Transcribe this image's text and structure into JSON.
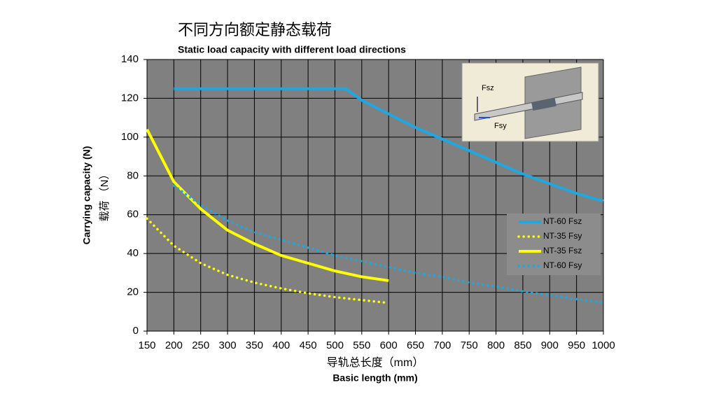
{
  "chart_data": {
    "type": "line",
    "title": "不同方向额定静态载荷",
    "subtitle": "Static load capacity with different load directions",
    "x_label": "导轨总长度（mm）",
    "x_label_en": "Basic length (mm)",
    "y_label": "Carrying capacity (N)",
    "y_label_cn": "载荷 （N）",
    "xlim": [
      150,
      1000
    ],
    "xticks": [
      150,
      200,
      250,
      300,
      350,
      400,
      450,
      500,
      550,
      600,
      650,
      700,
      750,
      800,
      850,
      900,
      950,
      1000
    ],
    "ylim": [
      0,
      140
    ],
    "yticks": [
      0,
      20,
      40,
      60,
      80,
      100,
      120,
      140
    ],
    "grid": true,
    "legend": "right",
    "series": [
      {
        "name": "NT-60 Fsz",
        "color": "#1ea7e0",
        "style": "solid",
        "x": [
          200,
          250,
          300,
          350,
          400,
          450,
          500,
          520,
          550,
          600,
          650,
          700,
          750,
          800,
          850,
          900,
          950,
          1000
        ],
        "values": [
          125,
          125,
          125,
          125,
          125,
          125,
          125,
          125,
          119,
          112,
          105,
          99,
          93,
          87,
          81,
          76,
          71,
          67
        ]
      },
      {
        "name": "NT-35 Fsy",
        "color": "#ffff00",
        "style": "dotted",
        "x": [
          150,
          200,
          250,
          300,
          350,
          400,
          450,
          500,
          550,
          600
        ],
        "values": [
          58,
          44,
          35,
          29,
          25,
          22,
          19.5,
          17.5,
          16,
          14.5
        ]
      },
      {
        "name": "NT-35 Fsz",
        "color": "#ffff00",
        "style": "solid",
        "x": [
          150,
          200,
          250,
          300,
          350,
          400,
          450,
          500,
          550,
          600
        ],
        "values": [
          104,
          77,
          63,
          52,
          45,
          39,
          35,
          31,
          28,
          26
        ]
      },
      {
        "name": "NT-60 Fsy",
        "color": "#1ea7e0",
        "style": "dotted",
        "x": [
          200,
          250,
          300,
          350,
          400,
          450,
          500,
          550,
          600,
          650,
          700,
          750,
          800,
          850,
          900,
          950,
          1000
        ],
        "values": [
          75,
          65,
          57,
          51,
          47,
          43,
          39,
          36,
          33,
          30,
          28,
          25,
          23,
          20.5,
          18.5,
          16.5,
          14.5
        ]
      }
    ],
    "inset": {
      "labels": [
        "Fsz",
        "Fsy"
      ]
    }
  }
}
